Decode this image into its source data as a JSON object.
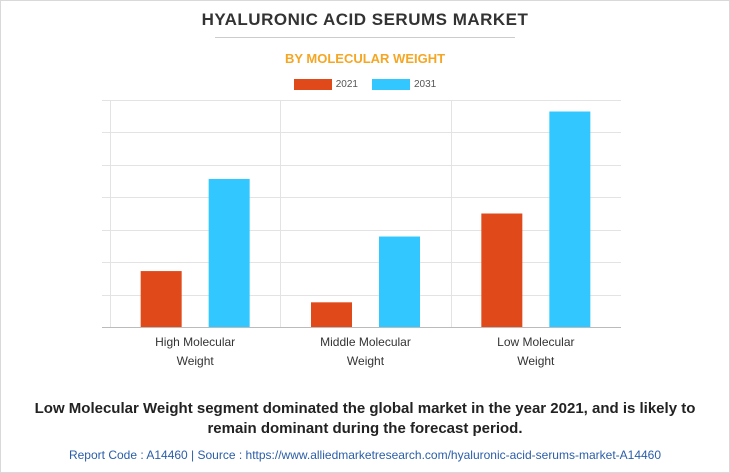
{
  "title": "HYALURONIC ACID SERUMS MARKET",
  "subtitle": "BY MOLECULAR WEIGHT",
  "colors": {
    "title": "#333333",
    "subtitle": "#f5a623",
    "series_2021": "#e04a1a",
    "series_2031": "#33c7ff",
    "footer": "#2a5ea8"
  },
  "chart_data": {
    "type": "bar",
    "categories": [
      [
        "High Molecular",
        "Weight"
      ],
      [
        "Middle Molecular",
        "Weight"
      ],
      [
        "Low Molecular",
        "Weight"
      ]
    ],
    "series": [
      {
        "name": "2021",
        "values": [
          1.7,
          0.75,
          3.45
        ]
      },
      {
        "name": "2031",
        "values": [
          4.5,
          2.75,
          6.55
        ]
      }
    ],
    "ylim": [
      0,
      6.9
    ],
    "ytick_count": 7,
    "grid": true,
    "legend_position": "top-center",
    "title": "",
    "xlabel": "",
    "ylabel": ""
  },
  "caption_lines": [
    "Low Molecular Weight segment dominated the global market in the year 2021, and is likely to",
    "remain dominant during the forecast period."
  ],
  "footer": "Report Code : A14460  |  Source : https://www.alliedmarketresearch.com/hyaluronic-acid-serums-market-A14460"
}
